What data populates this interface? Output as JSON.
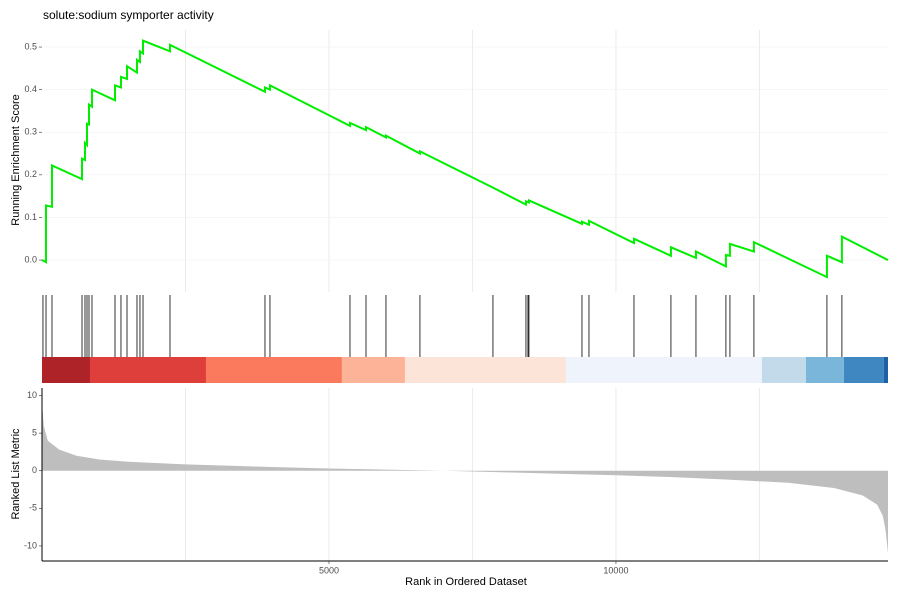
{
  "chart_data": [
    {
      "type": "line",
      "title": "solute:sodium symporter activity",
      "ylabel": "Running Enrichment Score",
      "color": "#00ee00",
      "grid": true,
      "xlim": [
        0,
        14740
      ],
      "xgrid": [
        2500,
        5000,
        7500,
        10000,
        12500
      ],
      "ylim": [
        -0.075,
        0.54
      ],
      "yticks": [
        {
          "value": 0,
          "label": "0.0"
        },
        0.1,
        0.2,
        0.3,
        0.4,
        0.5
      ],
      "x": [
        0,
        70,
        70,
        174,
        174,
        697,
        697,
        749,
        749,
        784,
        784,
        819,
        819,
        871,
        871,
        1272,
        1272,
        1376,
        1376,
        1481,
        1481,
        1655,
        1655,
        1707,
        1707,
        1760,
        1760,
        2230,
        2230,
        3885,
        3885,
        3972,
        3972,
        5366,
        5366,
        5645,
        5645,
        5993,
        5993,
        6585,
        6585,
        7857,
        8432,
        8432,
        8484,
        8484,
        9408,
        9408,
        9530,
        9530,
        10314,
        10314,
        10958,
        10958,
        11394,
        11394,
        11916,
        11916,
        11986,
        11986,
        12404,
        12404,
        13676,
        13676,
        13937,
        13937,
        14740
      ],
      "values": [
        0,
        -0.005,
        0.128,
        0.125,
        0.222,
        0.19,
        0.238,
        0.235,
        0.275,
        0.27,
        0.32,
        0.318,
        0.365,
        0.36,
        0.4,
        0.375,
        0.41,
        0.405,
        0.43,
        0.425,
        0.455,
        0.44,
        0.47,
        0.465,
        0.49,
        0.485,
        0.515,
        0.49,
        0.505,
        0.395,
        0.405,
        0.4,
        0.41,
        0.315,
        0.322,
        0.305,
        0.312,
        0.288,
        0.292,
        0.25,
        0.255,
        0.17,
        0.13,
        0.138,
        0.135,
        0.14,
        0.085,
        0.09,
        0.083,
        0.092,
        0.04,
        0.05,
        0.01,
        0.03,
        0.005,
        0.02,
        -0.015,
        0.012,
        0.01,
        0.038,
        0.02,
        0.042,
        -0.04,
        0.01,
        -0.005,
        0.055,
        0
      ]
    },
    {
      "type": "rug",
      "xlim": [
        0,
        14740
      ],
      "color": "#000000",
      "hits": [
        17,
        70,
        174,
        697,
        749,
        784,
        819,
        871,
        1272,
        1376,
        1481,
        1655,
        1707,
        1760,
        2230,
        3885,
        3972,
        5366,
        5645,
        5993,
        6585,
        7857,
        8432,
        8467,
        8484,
        9408,
        9530,
        10314,
        10958,
        11394,
        11916,
        11986,
        12404,
        13676,
        13937
      ],
      "band_edges": [
        0,
        836,
        2857,
        5226,
        6324,
        9129,
        12544,
        13310,
        13972,
        14669,
        14740
      ],
      "band_colors": [
        "#ae2328",
        "#de3f3a",
        "#fb7a5d",
        "#fcb398",
        "#fde4d9",
        "#eef3fc",
        "#c3daea",
        "#7ab6da",
        "#3e87c1",
        "#1e5fa6"
      ]
    },
    {
      "type": "area",
      "xlabel": "Rank in Ordered Dataset",
      "ylabel": "Ranked List Metric",
      "color": "#bebebe",
      "xlim": [
        0,
        14740
      ],
      "xgrid": [
        2500,
        5000,
        7500,
        10000,
        12500
      ],
      "xticks": [
        5000,
        10000
      ],
      "ylim": [
        -12,
        11
      ],
      "yticks": [
        -10,
        -5,
        0,
        5,
        10
      ],
      "x": [
        0,
        30,
        100,
        300,
        600,
        1000,
        1500,
        2500,
        4000,
        5000,
        6000,
        7000,
        8000,
        9000,
        10000,
        11000,
        12000,
        13000,
        13800,
        14300,
        14550,
        14650,
        14700,
        14740
      ],
      "values": [
        9,
        6,
        4,
        2.8,
        2,
        1.5,
        1.2,
        0.85,
        0.5,
        0.3,
        0.15,
        0,
        -0.2,
        -0.4,
        -0.6,
        -0.85,
        -1.2,
        -1.6,
        -2.3,
        -3.3,
        -4.5,
        -6,
        -8,
        -11
      ]
    }
  ]
}
